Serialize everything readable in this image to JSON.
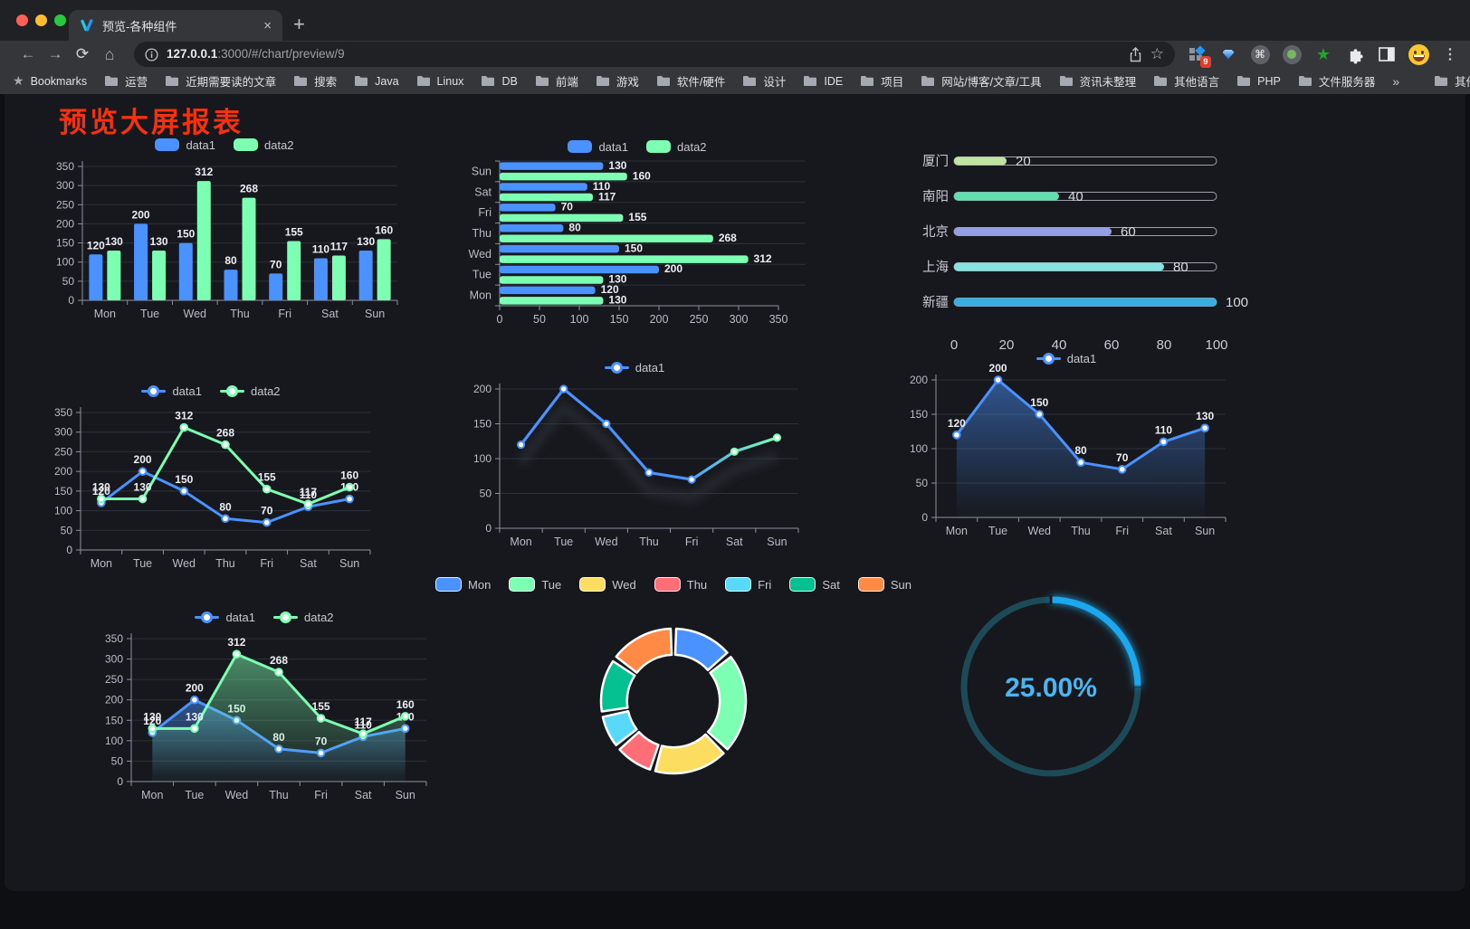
{
  "browser": {
    "tab_title": "预览-各种组件",
    "tab_close": "×",
    "newtab_label": "+",
    "url_host": "127.0.0.1",
    "url_rest": ":3000/#/chart/preview/9",
    "extension_badge": "9",
    "bookmarks_label": "Bookmarks",
    "bookmarks": [
      "运营",
      "近期需要读的文章",
      "搜索",
      "Java",
      "Linux",
      "DB",
      "前端",
      "游戏",
      "软件/硬件",
      "设计",
      "IDE",
      "项目",
      "网站/博客/文章/工具",
      "资讯未整理",
      "其他语言",
      "PHP",
      "文件服务器"
    ],
    "bookmarks_overflow": "»",
    "other_bookmarks": "其他书签"
  },
  "page": {
    "title": "预览大屏报表",
    "title_color": "#f53110"
  },
  "chart_data": [
    {
      "id": "grouped-bar-vertical",
      "type": "bar",
      "orient": "vertical",
      "categories": [
        "Mon",
        "Tue",
        "Wed",
        "Thu",
        "Fri",
        "Sat",
        "Sun"
      ],
      "series": [
        {
          "name": "data1",
          "color": "#4992ff",
          "values": [
            120,
            200,
            150,
            80,
            70,
            110,
            130
          ]
        },
        {
          "name": "data2",
          "color": "#7cffb2",
          "values": [
            130,
            130,
            312,
            268,
            155,
            117,
            160
          ]
        }
      ],
      "ylim": [
        0,
        350
      ],
      "yticks": [
        0,
        50,
        100,
        150,
        200,
        250,
        300,
        350
      ],
      "legend_icon": "rect",
      "show_labels": true
    },
    {
      "id": "grouped-bar-horizontal",
      "type": "bar",
      "orient": "horizontal",
      "categories": [
        "Mon",
        "Tue",
        "Wed",
        "Thu",
        "Fri",
        "Sat",
        "Sun"
      ],
      "display_note": "Sun at top, Mon at bottom",
      "series": [
        {
          "name": "data1",
          "color": "#4992ff",
          "values": [
            120,
            200,
            150,
            80,
            70,
            110,
            130
          ]
        },
        {
          "name": "data2",
          "color": "#7cffb2",
          "values": [
            130,
            130,
            312,
            268,
            155,
            117,
            160
          ]
        }
      ],
      "xlim": [
        0,
        350
      ],
      "xticks": [
        0,
        50,
        100,
        150,
        200,
        250,
        300,
        350
      ],
      "legend_icon": "rect",
      "show_labels": true
    },
    {
      "id": "progress-bars",
      "type": "progress",
      "max": 100,
      "rows": [
        {
          "label": "厦门",
          "value": 20,
          "color": "#c0e3a0"
        },
        {
          "label": "南阳",
          "value": 40,
          "color": "#5fe0ae"
        },
        {
          "label": "北京",
          "value": 60,
          "color": "#939ee5"
        },
        {
          "label": "上海",
          "value": 80,
          "color": "#86e3e0"
        },
        {
          "label": "新疆",
          "value": 100,
          "color": "#38aee0"
        }
      ],
      "axis_ticks": [
        0,
        20,
        40,
        60,
        80,
        100
      ]
    },
    {
      "id": "line-two-series",
      "type": "line",
      "categories": [
        "Mon",
        "Tue",
        "Wed",
        "Thu",
        "Fri",
        "Sat",
        "Sun"
      ],
      "series": [
        {
          "name": "data1",
          "color": "#4992ff",
          "values": [
            120,
            200,
            150,
            80,
            70,
            110,
            130
          ]
        },
        {
          "name": "data2",
          "color": "#7cffb2",
          "values": [
            130,
            130,
            312,
            268,
            155,
            117,
            160
          ]
        }
      ],
      "ylim": [
        0,
        350
      ],
      "yticks": [
        0,
        50,
        100,
        150,
        200,
        250,
        300,
        350
      ],
      "legend_icon": "line",
      "show_labels": true
    },
    {
      "id": "line-gradient-shadow",
      "type": "line",
      "variant": "gradient",
      "categories": [
        "Mon",
        "Tue",
        "Wed",
        "Thu",
        "Fri",
        "Sat",
        "Sun"
      ],
      "series": [
        {
          "name": "data1",
          "color": "#4992ff",
          "values": [
            120,
            200,
            150,
            80,
            70,
            110,
            130
          ]
        }
      ],
      "gradient": [
        "#4992ff",
        "#7cffb2"
      ],
      "ylim": [
        0,
        200
      ],
      "yticks": [
        0,
        50,
        100,
        150,
        200
      ],
      "legend_icon": "line",
      "show_labels": false
    },
    {
      "id": "line-area-single",
      "type": "line",
      "variant": "area",
      "categories": [
        "Mon",
        "Tue",
        "Wed",
        "Thu",
        "Fri",
        "Sat",
        "Sun"
      ],
      "series": [
        {
          "name": "data1",
          "color": "#4992ff",
          "values": [
            120,
            200,
            150,
            80,
            70,
            110,
            130
          ]
        }
      ],
      "ylim": [
        0,
        200
      ],
      "yticks": [
        0,
        50,
        100,
        150,
        200
      ],
      "legend_icon": "line",
      "show_labels": true
    },
    {
      "id": "line-area-two-series",
      "type": "line",
      "variant": "area",
      "categories": [
        "Mon",
        "Tue",
        "Wed",
        "Thu",
        "Fri",
        "Sat",
        "Sun"
      ],
      "series": [
        {
          "name": "data1",
          "color": "#4992ff",
          "values": [
            120,
            200,
            150,
            80,
            70,
            110,
            130
          ]
        },
        {
          "name": "data2",
          "color": "#7cffb2",
          "values": [
            130,
            130,
            312,
            268,
            155,
            117,
            160
          ]
        }
      ],
      "ylim": [
        0,
        350
      ],
      "yticks": [
        0,
        50,
        100,
        150,
        200,
        250,
        300,
        350
      ],
      "legend_icon": "line",
      "show_labels": true
    },
    {
      "id": "donut",
      "type": "pie",
      "inner_radius_ratio": 0.64,
      "labels": [
        "Mon",
        "Tue",
        "Wed",
        "Thu",
        "Fri",
        "Sat",
        "Sun"
      ],
      "values": [
        120,
        200,
        150,
        80,
        70,
        110,
        130
      ],
      "colors": [
        "#4992ff",
        "#7cffb2",
        "#fddd60",
        "#ff6e76",
        "#58d9f9",
        "#05c091",
        "#ff8a45"
      ],
      "legend_icon": "pie"
    },
    {
      "id": "gauge",
      "type": "gauge",
      "value_text": "25.00%",
      "percent": 25,
      "progress_color": "#1CA8EF",
      "track_color": "#1d4a57",
      "text_color": "#49b6f3"
    }
  ]
}
